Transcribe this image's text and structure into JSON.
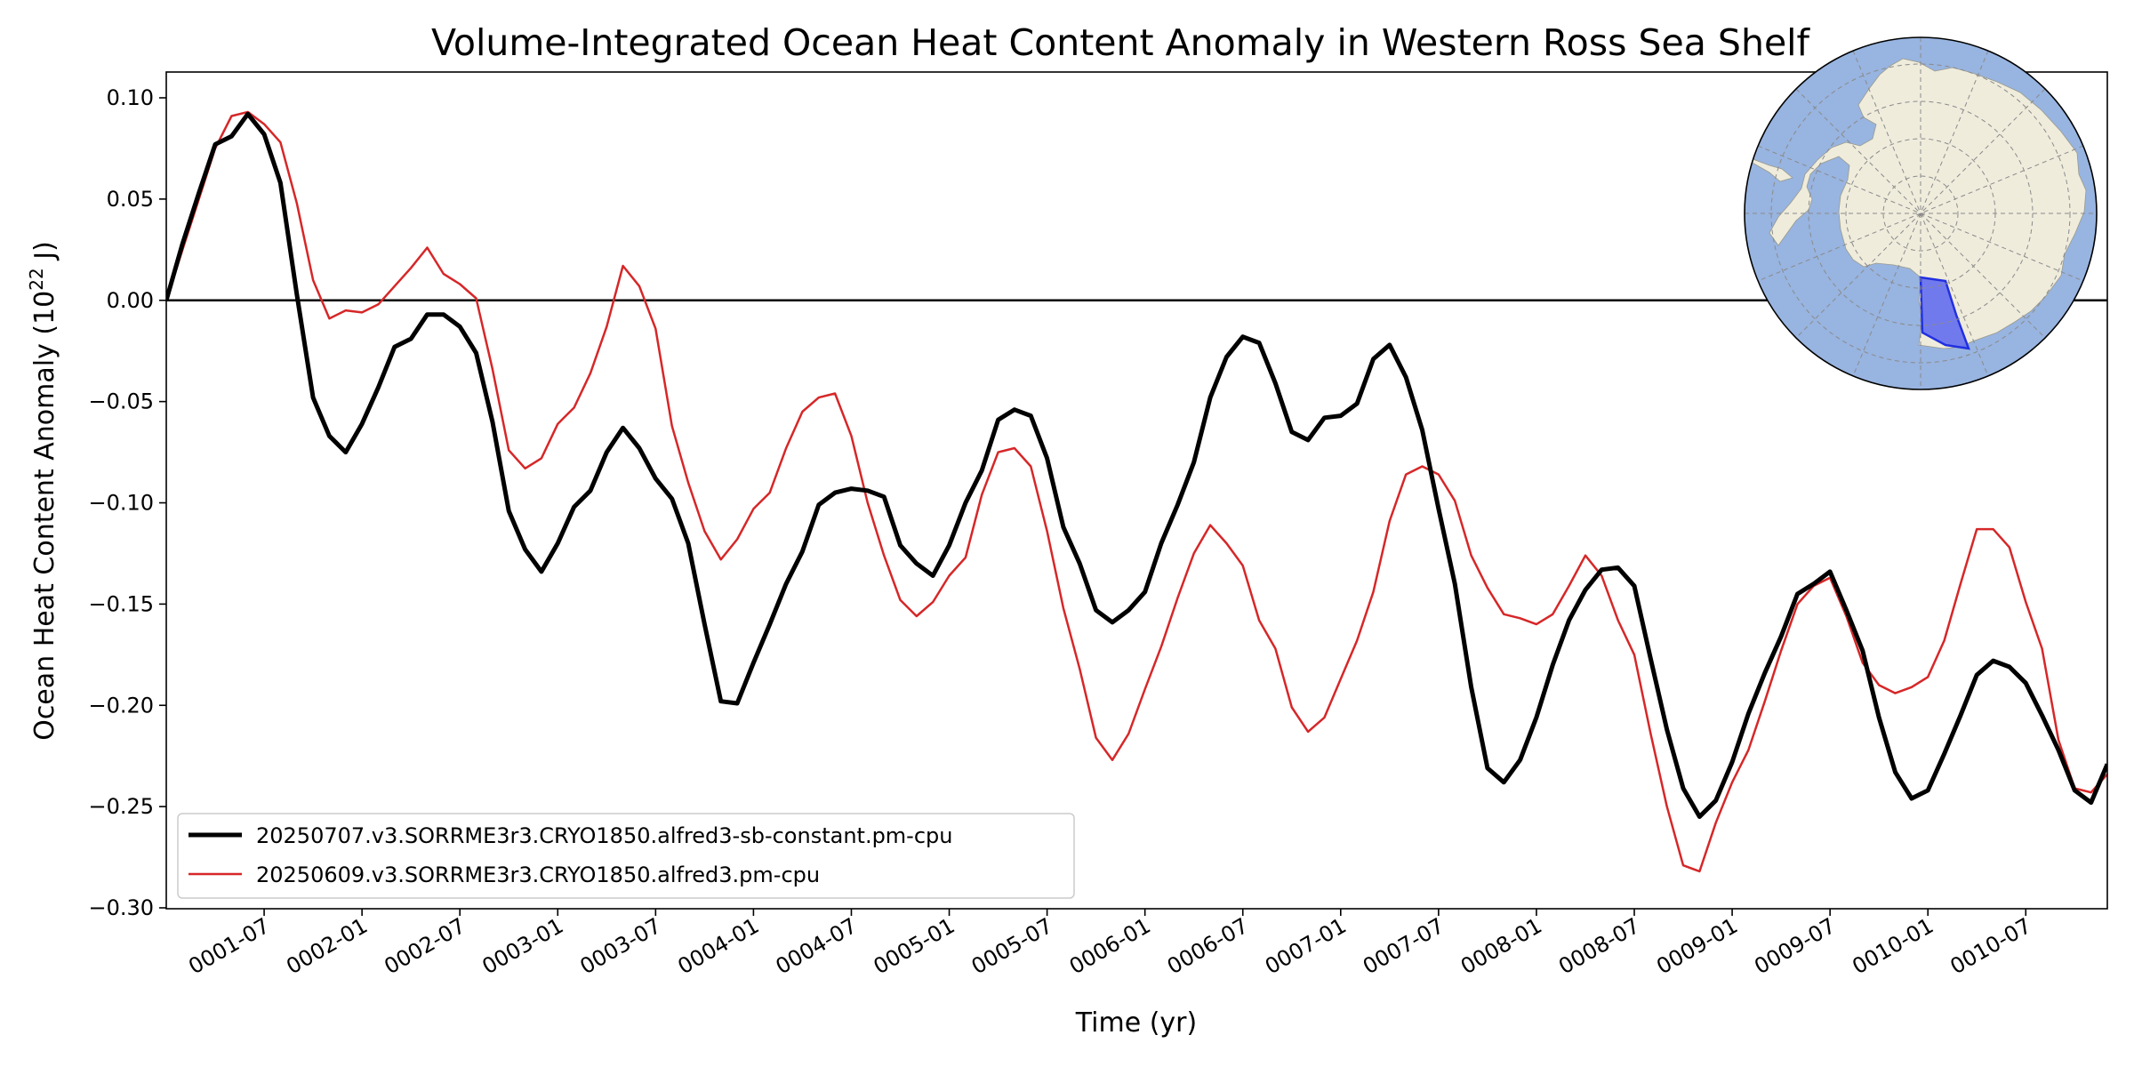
{
  "chart_data": {
    "type": "line",
    "title": "Volume-Integrated Ocean Heat Content Anomaly in Western Ross Sea Shelf",
    "xlabel": "Time (yr)",
    "ylabel_prefix": "Ocean Heat Content Anomaly (10",
    "ylabel_exp": "22",
    "ylabel_suffix": " J)",
    "ylim": [
      -0.3,
      0.1
    ],
    "yticks": [
      0.1,
      0.05,
      0.0,
      -0.05,
      -0.1,
      -0.15,
      -0.2,
      -0.25,
      -0.3
    ],
    "ytick_labels": [
      "0.10",
      "0.05",
      "0.00",
      "−0.05",
      "−0.10",
      "−0.15",
      "−0.20",
      "−0.25",
      "−0.30"
    ],
    "xticks": [
      "0001-07",
      "0002-01",
      "0002-07",
      "0003-01",
      "0003-07",
      "0004-01",
      "0004-07",
      "0005-01",
      "0005-07",
      "0006-01",
      "0006-07",
      "0007-01",
      "0007-07",
      "0008-01",
      "0008-07",
      "0009-01",
      "0009-07",
      "0010-01",
      "0010-07"
    ],
    "time_start": "0001-01",
    "time_end": "0010-12",
    "zero_line": true,
    "grid": false,
    "legend": "lower-left",
    "inset_map": {
      "region": "Western Ross Sea Shelf",
      "ocean_color": "#98b4e0",
      "land_color": "#efecdc",
      "region_color": "#3a4af0"
    },
    "series": [
      {
        "name": "20250707.v3.SORRME3r3.CRYO1850.alfred3-sb-constant.pm-cpu",
        "color": "#000000",
        "line_width": 5,
        "values": [
          0.0,
          0.028,
          0.053,
          0.077,
          0.081,
          0.092,
          0.082,
          0.058,
          0.003,
          -0.048,
          -0.067,
          -0.075,
          -0.061,
          -0.043,
          -0.023,
          -0.019,
          -0.007,
          -0.007,
          -0.013,
          -0.026,
          -0.06,
          -0.104,
          -0.123,
          -0.134,
          -0.12,
          -0.102,
          -0.094,
          -0.075,
          -0.063,
          -0.073,
          -0.088,
          -0.098,
          -0.12,
          -0.16,
          -0.198,
          -0.199,
          -0.179,
          -0.16,
          -0.14,
          -0.124,
          -0.101,
          -0.095,
          -0.093,
          -0.094,
          -0.097,
          -0.121,
          -0.13,
          -0.136,
          -0.121,
          -0.1,
          -0.084,
          -0.059,
          -0.054,
          -0.057,
          -0.078,
          -0.112,
          -0.13,
          -0.153,
          -0.159,
          -0.153,
          -0.144,
          -0.12,
          -0.101,
          -0.08,
          -0.048,
          -0.028,
          -0.018,
          -0.021,
          -0.041,
          -0.065,
          -0.069,
          -0.058,
          -0.057,
          -0.051,
          -0.029,
          -0.022,
          -0.038,
          -0.064,
          -0.103,
          -0.14,
          -0.191,
          -0.231,
          -0.238,
          -0.227,
          -0.206,
          -0.18,
          -0.158,
          -0.143,
          -0.133,
          -0.132,
          -0.141,
          -0.177,
          -0.212,
          -0.241,
          -0.255,
          -0.247,
          -0.228,
          -0.204,
          -0.184,
          -0.166,
          -0.145,
          -0.14,
          -0.134,
          -0.153,
          -0.173,
          -0.206,
          -0.233,
          -0.246,
          -0.242,
          -0.224,
          -0.205,
          -0.185,
          -0.178,
          -0.181,
          -0.189,
          -0.205,
          -0.222,
          -0.242,
          -0.248,
          -0.229
        ]
      },
      {
        "name": "20250609.v3.SORRME3r3.CRYO1850.alfred3.pm-cpu",
        "color": "#d62728",
        "line_width": 2.5,
        "values": [
          0.0,
          0.025,
          0.05,
          0.075,
          0.091,
          0.093,
          0.087,
          0.078,
          0.048,
          0.01,
          -0.009,
          -0.005,
          -0.006,
          -0.002,
          0.007,
          0.016,
          0.026,
          0.013,
          0.008,
          0.001,
          -0.034,
          -0.074,
          -0.083,
          -0.078,
          -0.061,
          -0.053,
          -0.036,
          -0.013,
          0.017,
          0.007,
          -0.014,
          -0.062,
          -0.09,
          -0.114,
          -0.128,
          -0.118,
          -0.103,
          -0.095,
          -0.073,
          -0.055,
          -0.048,
          -0.046,
          -0.067,
          -0.1,
          -0.126,
          -0.148,
          -0.156,
          -0.149,
          -0.136,
          -0.127,
          -0.096,
          -0.075,
          -0.073,
          -0.082,
          -0.114,
          -0.152,
          -0.182,
          -0.216,
          -0.227,
          -0.214,
          -0.192,
          -0.171,
          -0.147,
          -0.125,
          -0.111,
          -0.12,
          -0.131,
          -0.158,
          -0.172,
          -0.201,
          -0.213,
          -0.206,
          -0.187,
          -0.168,
          -0.144,
          -0.109,
          -0.086,
          -0.082,
          -0.086,
          -0.099,
          -0.126,
          -0.142,
          -0.155,
          -0.157,
          -0.16,
          -0.155,
          -0.141,
          -0.126,
          -0.136,
          -0.158,
          -0.175,
          -0.214,
          -0.25,
          -0.279,
          -0.282,
          -0.258,
          -0.238,
          -0.222,
          -0.198,
          -0.173,
          -0.15,
          -0.141,
          -0.137,
          -0.156,
          -0.179,
          -0.19,
          -0.194,
          -0.191,
          -0.186,
          -0.168,
          -0.14,
          -0.113,
          -0.113,
          -0.122,
          -0.149,
          -0.172,
          -0.217,
          -0.241,
          -0.243,
          -0.234
        ]
      }
    ]
  }
}
